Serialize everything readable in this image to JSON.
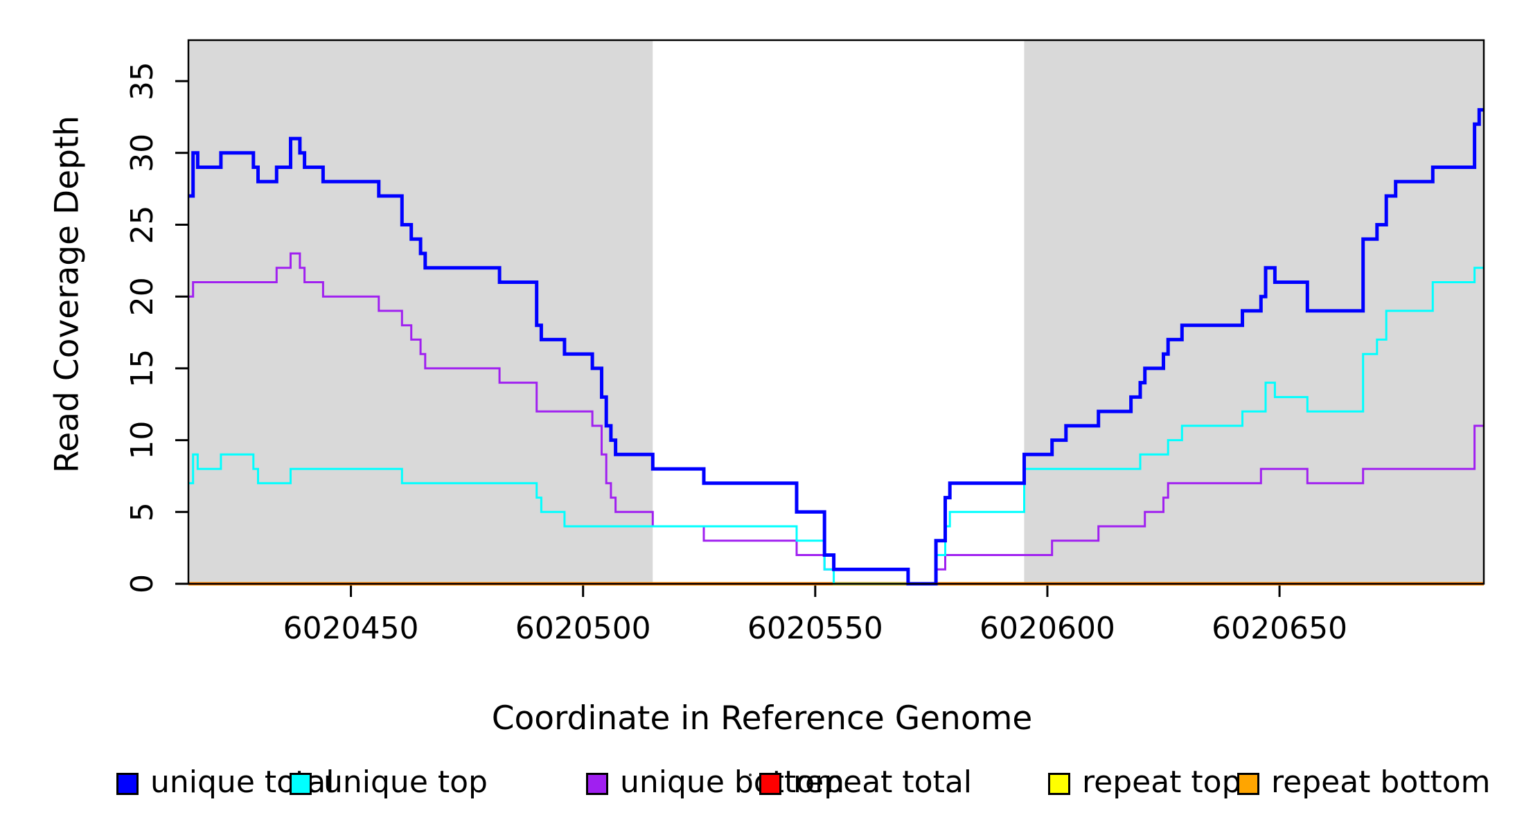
{
  "figure_title": "",
  "axes": {
    "x_label": "Coordinate in Reference Genome",
    "y_label": "Read Coverage Depth"
  },
  "chart_data": {
    "type": "line",
    "style": "step-after",
    "title": "",
    "xlabel": "Coordinate in Reference Genome",
    "ylabel": "Read Coverage Depth",
    "xlim": [
      6020415,
      6020694
    ],
    "ylim": [
      0,
      37.85
    ],
    "x_ticks": [
      6020450,
      6020500,
      6020550,
      6020600,
      6020650
    ],
    "y_ticks": [
      0,
      5,
      10,
      15,
      20,
      25,
      30,
      35
    ],
    "grid": false,
    "legend_position": "bottom",
    "shaded_regions": [
      {
        "from": 6020415,
        "to": 6020515,
        "color": "#D9D9D9"
      },
      {
        "from": 6020595,
        "to": 6020694,
        "color": "#D9D9D9"
      }
    ],
    "series": [
      {
        "name": "unique total",
        "color": "#0000FF",
        "width": 5,
        "steps": [
          [
            6020415,
            27
          ],
          [
            6020416,
            30
          ],
          [
            6020417,
            29
          ],
          [
            6020422,
            30
          ],
          [
            6020429,
            29
          ],
          [
            6020430,
            28
          ],
          [
            6020434,
            29
          ],
          [
            6020437,
            31
          ],
          [
            6020439,
            30
          ],
          [
            6020440,
            29
          ],
          [
            6020444,
            28
          ],
          [
            6020456,
            27
          ],
          [
            6020461,
            25
          ],
          [
            6020463,
            24
          ],
          [
            6020465,
            23
          ],
          [
            6020466,
            22
          ],
          [
            6020482,
            21
          ],
          [
            6020490,
            18
          ],
          [
            6020491,
            17
          ],
          [
            6020496,
            16
          ],
          [
            6020502,
            15
          ],
          [
            6020504,
            13
          ],
          [
            6020505,
            11
          ],
          [
            6020506,
            10
          ],
          [
            6020507,
            9
          ],
          [
            6020515,
            8
          ],
          [
            6020526,
            7
          ],
          [
            6020546,
            5
          ],
          [
            6020552,
            2
          ],
          [
            6020554,
            1
          ],
          [
            6020570,
            0
          ],
          [
            6020576,
            3
          ],
          [
            6020578,
            6
          ],
          [
            6020579,
            7
          ],
          [
            6020595,
            9
          ],
          [
            6020601,
            10
          ],
          [
            6020604,
            11
          ],
          [
            6020611,
            12
          ],
          [
            6020618,
            13
          ],
          [
            6020620,
            14
          ],
          [
            6020621,
            15
          ],
          [
            6020625,
            16
          ],
          [
            6020626,
            17
          ],
          [
            6020629,
            18
          ],
          [
            6020642,
            19
          ],
          [
            6020646,
            20
          ],
          [
            6020647,
            22
          ],
          [
            6020649,
            21
          ],
          [
            6020656,
            19
          ],
          [
            6020668,
            24
          ],
          [
            6020671,
            25
          ],
          [
            6020673,
            27
          ],
          [
            6020675,
            28
          ],
          [
            6020683,
            29
          ],
          [
            6020692,
            32
          ],
          [
            6020693,
            33
          ]
        ]
      },
      {
        "name": "unique top",
        "color": "#00FFFF",
        "width": 3,
        "steps": [
          [
            6020415,
            7
          ],
          [
            6020416,
            9
          ],
          [
            6020417,
            8
          ],
          [
            6020422,
            9
          ],
          [
            6020429,
            8
          ],
          [
            6020430,
            7
          ],
          [
            6020437,
            8
          ],
          [
            6020461,
            7
          ],
          [
            6020490,
            6
          ],
          [
            6020491,
            5
          ],
          [
            6020496,
            4
          ],
          [
            6020546,
            3
          ],
          [
            6020552,
            1
          ],
          [
            6020554,
            0
          ],
          [
            6020576,
            2
          ],
          [
            6020578,
            4
          ],
          [
            6020579,
            5
          ],
          [
            6020595,
            8
          ],
          [
            6020620,
            9
          ],
          [
            6020626,
            10
          ],
          [
            6020629,
            11
          ],
          [
            6020642,
            12
          ],
          [
            6020647,
            14
          ],
          [
            6020649,
            13
          ],
          [
            6020656,
            12
          ],
          [
            6020668,
            16
          ],
          [
            6020671,
            17
          ],
          [
            6020673,
            19
          ],
          [
            6020683,
            21
          ],
          [
            6020692,
            22
          ]
        ]
      },
      {
        "name": "unique bottom",
        "color": "#A020F0",
        "width": 3,
        "steps": [
          [
            6020415,
            20
          ],
          [
            6020416,
            21
          ],
          [
            6020434,
            22
          ],
          [
            6020437,
            23
          ],
          [
            6020439,
            22
          ],
          [
            6020440,
            21
          ],
          [
            6020444,
            20
          ],
          [
            6020456,
            19
          ],
          [
            6020461,
            18
          ],
          [
            6020463,
            17
          ],
          [
            6020465,
            16
          ],
          [
            6020466,
            15
          ],
          [
            6020482,
            14
          ],
          [
            6020490,
            12
          ],
          [
            6020502,
            11
          ],
          [
            6020504,
            9
          ],
          [
            6020505,
            7
          ],
          [
            6020506,
            6
          ],
          [
            6020507,
            5
          ],
          [
            6020515,
            4
          ],
          [
            6020526,
            3
          ],
          [
            6020546,
            2
          ],
          [
            6020552,
            1
          ],
          [
            6020570,
            0
          ],
          [
            6020576,
            1
          ],
          [
            6020578,
            2
          ],
          [
            6020601,
            3
          ],
          [
            6020611,
            4
          ],
          [
            6020621,
            5
          ],
          [
            6020625,
            6
          ],
          [
            6020626,
            7
          ],
          [
            6020646,
            8
          ],
          [
            6020656,
            7
          ],
          [
            6020668,
            8
          ],
          [
            6020692,
            11
          ]
        ]
      },
      {
        "name": "repeat total",
        "color": "#FF0000",
        "width": 3,
        "steps": [
          [
            6020415,
            0
          ]
        ]
      },
      {
        "name": "repeat top",
        "color": "#FFFF00",
        "width": 3,
        "steps": [
          [
            6020415,
            0
          ]
        ]
      },
      {
        "name": "repeat bottom",
        "color": "#FFA500",
        "width": 5,
        "steps": [
          [
            6020415,
            0
          ]
        ]
      }
    ]
  },
  "legend": {
    "items": [
      {
        "label": "unique total",
        "color": "#0000FF"
      },
      {
        "label": "unique top",
        "color": "#00FFFF"
      },
      {
        "label": "unique bottom",
        "color": "#A020F0"
      },
      {
        "label": "repeat total",
        "color": "#FF0000"
      },
      {
        "label": "repeat top",
        "color": "#FFFF00"
      },
      {
        "label": "repeat bottom",
        "color": "#FFA500"
      }
    ]
  }
}
